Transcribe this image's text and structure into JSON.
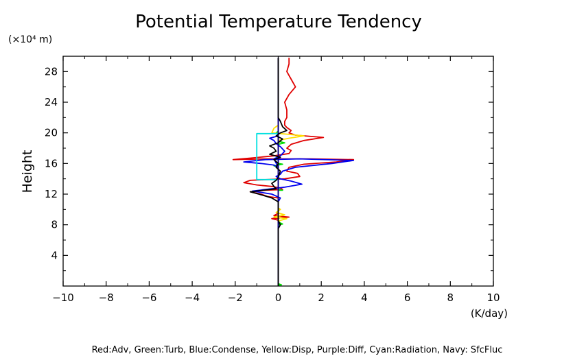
{
  "chart_data": {
    "type": "line",
    "title": "Potential Temperature Tendency",
    "ylabel": "Height",
    "yunit": "(×10⁴ m)",
    "xunit": "(K/day)",
    "caption": "Red:Adv, Green:Turb, Blue:Condense, Yellow:Disp, Purple:Diff, Cyan:Radiation, Navy: SfcFluc",
    "xlim": [
      -10,
      10
    ],
    "ylim": [
      0,
      30
    ],
    "xticks": [
      -10,
      -8,
      -6,
      -4,
      -2,
      0,
      2,
      4,
      6,
      8,
      10
    ],
    "xtick_labels": [
      "−10",
      "−8",
      "−6",
      "−4",
      "−2",
      "0",
      "2",
      "4",
      "6",
      "8",
      "10"
    ],
    "yticks": [
      4,
      8,
      12,
      16,
      20,
      24,
      28
    ],
    "ytick_labels": [
      "4",
      "8",
      "12",
      "16",
      "20",
      "24",
      "28"
    ],
    "grid": false,
    "series": [
      {
        "key": "Adv",
        "color": "#e00000",
        "points": [
          [
            0,
            0
          ],
          [
            0,
            1
          ],
          [
            0,
            2
          ],
          [
            0,
            3
          ],
          [
            0,
            4
          ],
          [
            0,
            5
          ],
          [
            0,
            6
          ],
          [
            0,
            7
          ],
          [
            0,
            7.9
          ],
          [
            0.05,
            8.3
          ],
          [
            0,
            8.6
          ],
          [
            -0.3,
            8.8
          ],
          [
            0.5,
            9
          ],
          [
            -0.2,
            9.2
          ],
          [
            0,
            9.5
          ],
          [
            0,
            10
          ],
          [
            0,
            10.5
          ],
          [
            0,
            11
          ],
          [
            0,
            11.5
          ],
          [
            -0.5,
            11.7
          ],
          [
            -0.8,
            12
          ],
          [
            -1.3,
            12.3
          ],
          [
            -0.6,
            12.5
          ],
          [
            0.2,
            12.6
          ],
          [
            0.1,
            12.8
          ],
          [
            -0.3,
            13
          ],
          [
            -1,
            13.2
          ],
          [
            -1.6,
            13.5
          ],
          [
            -1.3,
            13.8
          ],
          [
            0.3,
            14
          ],
          [
            1,
            14.3
          ],
          [
            0.9,
            14.7
          ],
          [
            0.4,
            15
          ],
          [
            0.5,
            15.5
          ],
          [
            1.2,
            15.9
          ],
          [
            2.7,
            16.2
          ],
          [
            3.5,
            16.5
          ],
          [
            1.5,
            16.6
          ],
          [
            -0.5,
            16.6
          ],
          [
            -2.1,
            16.5
          ],
          [
            -1.3,
            16.7
          ],
          [
            -0.2,
            17
          ],
          [
            0.5,
            17.3
          ],
          [
            0.6,
            17.7
          ],
          [
            0.4,
            18
          ],
          [
            0.6,
            18.5
          ],
          [
            1.2,
            19
          ],
          [
            2.1,
            19.4
          ],
          [
            0.8,
            19.7
          ],
          [
            0.5,
            20
          ],
          [
            0.6,
            20.3
          ],
          [
            0.4,
            20.7
          ],
          [
            0.3,
            21
          ],
          [
            0.3,
            21.5
          ],
          [
            0.4,
            22
          ],
          [
            0.4,
            23
          ],
          [
            0.3,
            24
          ],
          [
            0.5,
            25
          ],
          [
            0.8,
            26
          ],
          [
            0.6,
            27
          ],
          [
            0.4,
            28
          ],
          [
            0.5,
            29
          ],
          [
            0.5,
            29.8
          ]
        ]
      },
      {
        "key": "Turb",
        "color": "#00dd00",
        "points": [
          [
            0,
            0.1
          ],
          [
            0.15,
            0.15
          ],
          [
            0,
            0.3
          ],
          [
            0,
            1
          ],
          [
            0,
            8
          ],
          [
            0.2,
            8.1
          ],
          [
            0.05,
            8.3
          ],
          [
            0,
            8.5
          ],
          [
            0,
            12.5
          ],
          [
            0.2,
            12.5
          ],
          [
            0,
            12.6
          ],
          [
            0,
            15.5
          ],
          [
            -0.2,
            15.7
          ],
          [
            0.2,
            15.9
          ],
          [
            0,
            16
          ],
          [
            0,
            18.5
          ],
          [
            0.3,
            18.7
          ],
          [
            0,
            18.9
          ],
          [
            0,
            19.8
          ],
          [
            -0.1,
            20
          ],
          [
            0,
            20.2
          ],
          [
            0,
            29.8
          ]
        ]
      },
      {
        "key": "Condense",
        "color": "#0000ee",
        "points": [
          [
            0,
            0
          ],
          [
            0,
            6
          ],
          [
            0,
            7.5
          ],
          [
            0,
            10
          ],
          [
            0,
            11
          ],
          [
            0.1,
            11.5
          ],
          [
            -0.3,
            12
          ],
          [
            -1.2,
            12.4
          ],
          [
            -0.3,
            12.7
          ],
          [
            0.3,
            12.9
          ],
          [
            1.1,
            13.3
          ],
          [
            0.6,
            13.7
          ],
          [
            0.1,
            14
          ],
          [
            -0.1,
            14.3
          ],
          [
            0.1,
            14.6
          ],
          [
            0.2,
            15
          ],
          [
            0.8,
            15.5
          ],
          [
            2.5,
            16
          ],
          [
            3.5,
            16.4
          ],
          [
            1,
            16.6
          ],
          [
            -0.6,
            16.5
          ],
          [
            -1.6,
            16.2
          ],
          [
            -0.8,
            16
          ],
          [
            -0.2,
            15.8
          ],
          [
            0,
            15.5
          ],
          [
            -0.2,
            16.6
          ],
          [
            0.1,
            17
          ],
          [
            0.3,
            17.6
          ],
          [
            0.1,
            18.2
          ],
          [
            -0.1,
            18.6
          ],
          [
            -0.2,
            19
          ],
          [
            -0.4,
            19.3
          ],
          [
            0,
            19.6
          ],
          [
            0,
            20
          ],
          [
            0,
            29.8
          ]
        ]
      },
      {
        "key": "Disp",
        "color": "#ffe000",
        "points": [
          [
            0,
            8.5
          ],
          [
            0.4,
            8.8
          ],
          [
            -0.2,
            9
          ],
          [
            0.3,
            9.3
          ],
          [
            -0.1,
            9.6
          ],
          [
            0.1,
            10
          ],
          [
            0,
            10.2
          ],
          [
            0,
            19
          ],
          [
            0.5,
            19.3
          ],
          [
            1.2,
            19.6
          ],
          [
            0.5,
            19.8
          ],
          [
            -0.3,
            20
          ],
          [
            -0.2,
            20.6
          ],
          [
            0,
            21
          ],
          [
            0,
            21.5
          ]
        ]
      },
      {
        "key": "Diff",
        "color": "#a000a0",
        "points": [
          [
            0,
            0
          ],
          [
            0,
            29.8
          ]
        ]
      },
      {
        "key": "Radiation",
        "color": "#00e0e0",
        "points": [
          [
            0,
            13.9
          ],
          [
            -1,
            13.9
          ],
          [
            -1,
            19.9
          ],
          [
            0,
            19.9
          ]
        ]
      },
      {
        "key": "SfcFluc",
        "color": "#000080",
        "points": [
          [
            0,
            0
          ],
          [
            0,
            29.8
          ]
        ]
      },
      {
        "key": "Total",
        "color": "#000000",
        "points": [
          [
            0,
            0
          ],
          [
            0,
            7.5
          ],
          [
            0.1,
            8
          ],
          [
            0,
            8.5
          ],
          [
            0,
            9
          ],
          [
            0,
            10
          ],
          [
            0,
            11
          ],
          [
            -0.3,
            11.5
          ],
          [
            -0.9,
            12
          ],
          [
            -1.3,
            12.3
          ],
          [
            -0.7,
            12.5
          ],
          [
            -0.1,
            12.7
          ],
          [
            -0.2,
            13
          ],
          [
            -0.3,
            13.4
          ],
          [
            -0.1,
            13.8
          ],
          [
            0,
            14.2
          ],
          [
            0.1,
            15
          ],
          [
            -0.1,
            15.5
          ],
          [
            0,
            16
          ],
          [
            -0.2,
            16.5
          ],
          [
            0.1,
            16.8
          ],
          [
            -0.4,
            17.2
          ],
          [
            -0.1,
            17.6
          ],
          [
            -0.2,
            18
          ],
          [
            -0.4,
            18.3
          ],
          [
            0,
            18.7
          ],
          [
            0.2,
            19.2
          ],
          [
            -0.1,
            19.6
          ],
          [
            0.1,
            20
          ],
          [
            0.4,
            20.3
          ],
          [
            0.2,
            20.8
          ],
          [
            0.1,
            21.5
          ],
          [
            0,
            22
          ],
          [
            0,
            29.8
          ]
        ]
      }
    ]
  }
}
